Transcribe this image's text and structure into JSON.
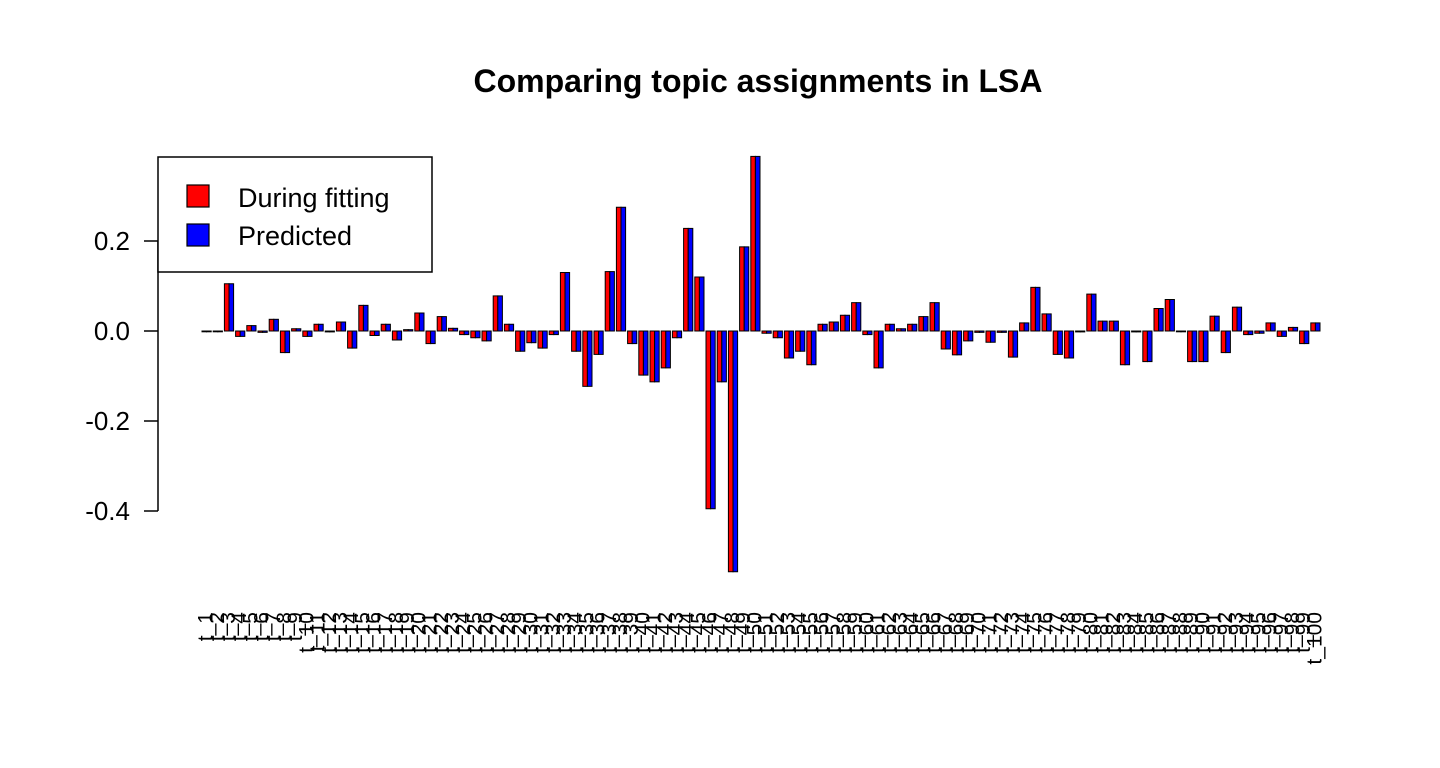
{
  "chart_data": {
    "type": "bar",
    "layout": "grouped",
    "title": "Comparing topic assignments in LSA",
    "xlabel": "",
    "ylabel": "",
    "ylim": [
      -0.45,
      0.4
    ],
    "yticks": [
      -0.4,
      -0.2,
      0.0,
      0.2
    ],
    "ytick_labels": [
      "-0.4",
      "-0.2",
      "0.0",
      "0.2"
    ],
    "grid": false,
    "legend": {
      "position": "top-left",
      "entries": [
        "During fitting",
        "Predicted"
      ]
    },
    "colors": {
      "During fitting": "#ff0000",
      "Predicted": "#0000ff",
      "border": "#000000"
    },
    "categories": [
      "t_1",
      "t_2",
      "t_3",
      "t_4",
      "t_5",
      "t_6",
      "t_7",
      "t_8",
      "t_9",
      "t_10",
      "t_11",
      "t_12",
      "t_13",
      "t_14",
      "t_15",
      "t_16",
      "t_17",
      "t_18",
      "t_19",
      "t_20",
      "t_21",
      "t_22",
      "t_23",
      "t_24",
      "t_25",
      "t_26",
      "t_27",
      "t_28",
      "t_29",
      "t_30",
      "t_31",
      "t_32",
      "t_33",
      "t_34",
      "t_35",
      "t_36",
      "t_37",
      "t_38",
      "t_39",
      "t_40",
      "t_41",
      "t_42",
      "t_43",
      "t_44",
      "t_45",
      "t_46",
      "t_47",
      "t_48",
      "t_49",
      "t_50",
      "t_51",
      "t_52",
      "t_53",
      "t_54",
      "t_55",
      "t_56",
      "t_57",
      "t_58",
      "t_59",
      "t_60",
      "t_61",
      "t_62",
      "t_63",
      "t_64",
      "t_65",
      "t_66",
      "t_67",
      "t_68",
      "t_69",
      "t_70",
      "t_71",
      "t_72",
      "t_73",
      "t_74",
      "t_75",
      "t_76",
      "t_77",
      "t_78",
      "t_79",
      "t_80",
      "t_81",
      "t_82",
      "t_83",
      "t_84",
      "t_85",
      "t_86",
      "t_87",
      "t_88",
      "t_89",
      "t_90",
      "t_91",
      "t_92",
      "t_93",
      "t_94",
      "t_95",
      "t_96",
      "t_97",
      "t_98",
      "t_99",
      "t_100"
    ],
    "series": [
      {
        "name": "During fitting",
        "values": [
          0.0,
          0.0,
          0.105,
          -0.012,
          0.012,
          -0.003,
          0.026,
          -0.048,
          0.005,
          -0.012,
          0.015,
          -0.002,
          0.02,
          -0.038,
          0.057,
          -0.01,
          0.015,
          -0.02,
          0.003,
          0.04,
          -0.028,
          0.032,
          0.006,
          -0.008,
          -0.015,
          -0.022,
          0.078,
          0.015,
          -0.045,
          -0.026,
          -0.038,
          -0.008,
          0.13,
          -0.045,
          -0.123,
          -0.052,
          0.132,
          0.275,
          -0.028,
          -0.098,
          -0.113,
          -0.082,
          -0.015,
          0.228,
          0.12,
          -0.395,
          -0.113,
          -0.535,
          0.187,
          0.388,
          -0.005,
          -0.015,
          -0.06,
          -0.045,
          -0.075,
          0.015,
          0.02,
          0.035,
          0.063,
          -0.008,
          -0.082,
          0.015,
          0.005,
          0.015,
          0.032,
          0.063,
          -0.04,
          -0.053,
          -0.022,
          -0.003,
          -0.025,
          -0.003,
          -0.058,
          0.018,
          0.097,
          0.038,
          -0.052,
          -0.06,
          -0.002,
          0.082,
          0.022,
          0.022,
          -0.075,
          -0.002,
          -0.068,
          0.05,
          0.07,
          0.0,
          -0.068,
          -0.068,
          0.033,
          -0.048,
          0.053,
          -0.008,
          -0.005,
          0.018,
          -0.012,
          0.008,
          -0.028,
          0.018
        ]
      },
      {
        "name": "Predicted",
        "values": [
          0.0,
          0.0,
          0.105,
          -0.012,
          0.012,
          -0.003,
          0.026,
          -0.048,
          0.005,
          -0.012,
          0.015,
          -0.002,
          0.02,
          -0.038,
          0.057,
          -0.01,
          0.015,
          -0.02,
          0.003,
          0.04,
          -0.028,
          0.032,
          0.006,
          -0.008,
          -0.015,
          -0.022,
          0.078,
          0.015,
          -0.045,
          -0.026,
          -0.038,
          -0.008,
          0.13,
          -0.045,
          -0.123,
          -0.052,
          0.132,
          0.275,
          -0.028,
          -0.098,
          -0.113,
          -0.082,
          -0.015,
          0.228,
          0.12,
          -0.395,
          -0.113,
          -0.535,
          0.187,
          0.388,
          -0.005,
          -0.015,
          -0.06,
          -0.045,
          -0.075,
          0.015,
          0.02,
          0.035,
          0.063,
          -0.008,
          -0.082,
          0.015,
          0.005,
          0.015,
          0.032,
          0.063,
          -0.04,
          -0.053,
          -0.022,
          -0.003,
          -0.025,
          -0.003,
          -0.058,
          0.018,
          0.097,
          0.038,
          -0.052,
          -0.06,
          -0.002,
          0.082,
          0.022,
          0.022,
          -0.075,
          -0.002,
          -0.068,
          0.05,
          0.07,
          0.0,
          -0.068,
          -0.068,
          0.033,
          -0.048,
          0.053,
          -0.008,
          -0.005,
          0.018,
          -0.012,
          0.008,
          -0.028,
          0.018
        ]
      }
    ]
  }
}
